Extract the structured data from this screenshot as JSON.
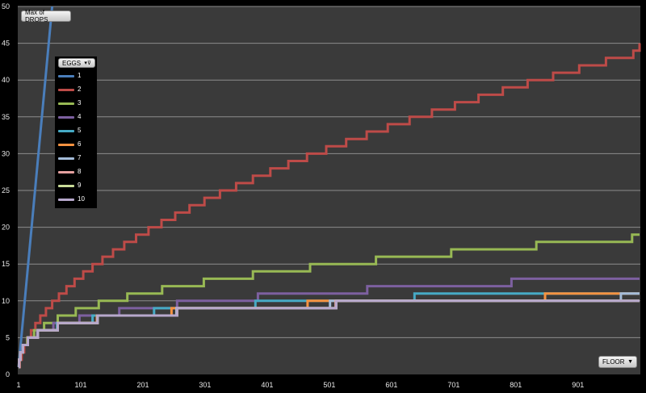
{
  "field_button": {
    "label": "Max of DROPS"
  },
  "axis_button": {
    "label": "FLOOR",
    "icon": "dropdown-arrow-icon"
  },
  "legend": {
    "title": "EGGS",
    "icon": "filter-dropdown-icon"
  },
  "colors": {
    "background": "#000000",
    "plot_area": "#3a3a3a",
    "gridline": "#8c8c8c",
    "series": [
      "#4a7ebb",
      "#be4b48",
      "#98b954",
      "#7d60a0",
      "#46aac5",
      "#f69240",
      "#a4bcd9",
      "#e4a09f",
      "#c9dc98",
      "#b7a8cc"
    ]
  },
  "chart_data": {
    "type": "line",
    "title": "",
    "xlabel": "FLOOR",
    "ylabel": "Max of DROPS",
    "xlim": [
      1,
      1000
    ],
    "ylim": [
      0,
      50
    ],
    "x_ticks": [
      "1",
      "101",
      "201",
      "301",
      "401",
      "501",
      "601",
      "701",
      "801",
      "901"
    ],
    "y_ticks": [
      "0",
      "5",
      "10",
      "15",
      "20",
      "25",
      "30",
      "35",
      "40",
      "45",
      "50"
    ],
    "grid": true,
    "legend_position": "top-left",
    "series": [
      {
        "name": "1",
        "x": [
          1,
          55
        ],
        "y": [
          1,
          50
        ]
      },
      {
        "name": "2",
        "x": [
          1,
          3,
          6,
          10,
          15,
          21,
          28,
          36,
          45,
          55,
          66,
          78,
          91,
          105,
          120,
          136,
          153,
          171,
          190,
          210,
          231,
          253,
          276,
          300,
          325,
          351,
          378,
          406,
          435,
          465,
          496,
          528,
          561,
          595,
          630,
          666,
          703,
          741,
          780,
          820,
          861,
          903,
          946,
          990,
          1000
        ],
        "y": [
          1,
          2,
          3,
          4,
          5,
          6,
          7,
          8,
          9,
          10,
          11,
          12,
          13,
          14,
          15,
          16,
          17,
          18,
          19,
          20,
          21,
          22,
          23,
          24,
          25,
          26,
          27,
          28,
          29,
          30,
          31,
          32,
          33,
          34,
          35,
          36,
          37,
          38,
          39,
          40,
          41,
          42,
          43,
          44,
          45
        ]
      },
      {
        "name": "3",
        "x": [
          1,
          2,
          4,
          8,
          15,
          26,
          42,
          64,
          93,
          130,
          176,
          232,
          299,
          378,
          470,
          576,
          697,
          834,
          988,
          1000
        ],
        "y": [
          1,
          2,
          3,
          4,
          5,
          6,
          7,
          8,
          9,
          10,
          11,
          12,
          13,
          14,
          15,
          16,
          17,
          18,
          19,
          19
        ]
      },
      {
        "name": "4",
        "x": [
          1,
          2,
          4,
          8,
          16,
          31,
          57,
          99,
          163,
          256,
          386,
          562,
          794,
          1000
        ],
        "y": [
          1,
          2,
          3,
          4,
          5,
          6,
          7,
          8,
          9,
          10,
          11,
          12,
          13,
          13
        ]
      },
      {
        "name": "5",
        "x": [
          1,
          2,
          4,
          8,
          16,
          32,
          63,
          120,
          219,
          382,
          638,
          1000
        ],
        "y": [
          1,
          2,
          3,
          4,
          5,
          6,
          7,
          8,
          9,
          10,
          11,
          11
        ]
      },
      {
        "name": "6",
        "x": [
          1,
          2,
          4,
          8,
          16,
          32,
          64,
          127,
          247,
          466,
          848,
          1000
        ],
        "y": [
          1,
          2,
          3,
          4,
          5,
          6,
          7,
          8,
          9,
          10,
          11,
          11
        ]
      },
      {
        "name": "7",
        "x": [
          1,
          2,
          4,
          8,
          16,
          32,
          64,
          128,
          255,
          502,
          970,
          1000
        ],
        "y": [
          1,
          2,
          3,
          4,
          5,
          6,
          7,
          8,
          9,
          10,
          11,
          11
        ]
      },
      {
        "name": "8",
        "x": [
          1,
          2,
          4,
          8,
          16,
          32,
          64,
          128,
          256,
          511,
          1000
        ],
        "y": [
          1,
          2,
          3,
          4,
          5,
          6,
          7,
          8,
          9,
          10,
          10
        ]
      },
      {
        "name": "9",
        "x": [
          1,
          2,
          4,
          8,
          16,
          32,
          64,
          128,
          256,
          512,
          1000
        ],
        "y": [
          1,
          2,
          3,
          4,
          5,
          6,
          7,
          8,
          9,
          10,
          10
        ]
      },
      {
        "name": "10",
        "x": [
          1,
          2,
          4,
          8,
          16,
          32,
          64,
          128,
          256,
          512,
          1000
        ],
        "y": [
          1,
          2,
          3,
          4,
          5,
          6,
          7,
          8,
          9,
          10,
          10
        ]
      }
    ]
  }
}
